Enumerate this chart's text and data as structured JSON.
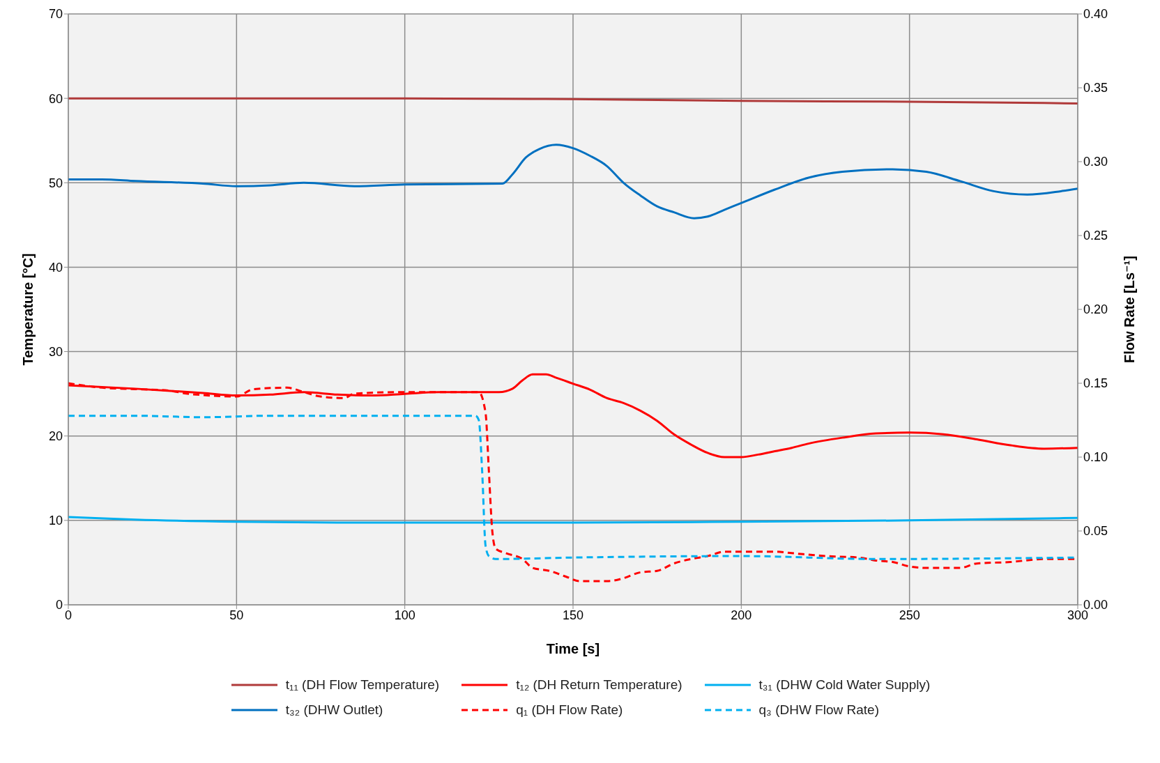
{
  "chart_data": {
    "type": "line",
    "xlabel": "Time [s]",
    "ylabel": "Temperature [°C]",
    "y2label": "Flow Rate [Ls⁻¹]",
    "xlim": [
      0,
      300
    ],
    "xticks": [
      0,
      50,
      100,
      150,
      200,
      250,
      300
    ],
    "ylim": [
      0,
      70
    ],
    "yticks": [
      0,
      10,
      20,
      30,
      40,
      50,
      60,
      70
    ],
    "y2lim": [
      0,
      0.4
    ],
    "y2ticks": [
      {
        "value": 0,
        "label": "0.00"
      },
      {
        "value": 0.05,
        "label": "0.05"
      },
      {
        "value": 0.1,
        "label": "0.10"
      },
      {
        "value": 0.15,
        "label": "0.15"
      },
      {
        "value": 0.2,
        "label": "0.20"
      },
      {
        "value": 0.25,
        "label": "0.25"
      },
      {
        "value": 0.3,
        "label": "0.30"
      },
      {
        "value": 0.35,
        "label": "0.35"
      },
      {
        "value": 0.4,
        "label": "0.40"
      }
    ],
    "grid": true,
    "legend": "bottom",
    "series": [
      {
        "name": "t₁₁ (DH Flow Temperature)",
        "color": "#b03a3a",
        "line_style": "solid",
        "x": [
          0,
          50,
          100,
          150,
          200,
          250,
          300
        ],
        "values": [
          60.0,
          60.0,
          60.0,
          59.9,
          59.7,
          59.6,
          59.4
        ]
      },
      {
        "name": "t₁₂ (DH Return Temperature)",
        "color": "#ff0000",
        "line_style": "solid",
        "x": [
          0,
          20,
          40,
          50,
          60,
          70,
          80,
          90,
          100,
          110,
          128,
          132,
          135,
          138,
          142,
          145,
          150,
          155,
          160,
          165,
          170,
          175,
          180,
          185,
          190,
          195,
          200,
          205,
          210,
          215,
          220,
          230,
          240,
          250,
          260,
          270,
          280,
          290,
          300
        ],
        "values": [
          26.0,
          25.6,
          25.1,
          24.8,
          24.9,
          25.2,
          24.9,
          24.8,
          25.0,
          25.2,
          25.2,
          25.6,
          26.6,
          27.3,
          27.3,
          26.9,
          26.2,
          25.5,
          24.5,
          23.9,
          23.0,
          21.8,
          20.2,
          19.0,
          18.0,
          17.5,
          17.5,
          17.8,
          18.2,
          18.6,
          19.1,
          19.8,
          20.3,
          20.4,
          20.2,
          19.6,
          18.9,
          18.5,
          18.6
        ]
      },
      {
        "name": "t₃₁ (DHW Cold Water Supply)",
        "color": "#00b0f0",
        "line_style": "solid",
        "x": [
          0,
          20,
          50,
          80,
          150,
          200,
          250,
          300
        ],
        "values": [
          10.4,
          10.1,
          9.85,
          9.75,
          9.75,
          9.85,
          10.0,
          10.3
        ]
      },
      {
        "name": "t₃₂ (DHW Outlet)",
        "color": "#0070c0",
        "line_style": "solid",
        "x": [
          0,
          10,
          20,
          40,
          50,
          60,
          70,
          85,
          100,
          129,
          132,
          136,
          140,
          145,
          150,
          155,
          160,
          165,
          170,
          175,
          180,
          186,
          190,
          195,
          200,
          210,
          220,
          230,
          245,
          255,
          265,
          275,
          285,
          295,
          300
        ],
        "values": [
          50.4,
          50.4,
          50.2,
          49.9,
          49.6,
          49.7,
          50.0,
          49.6,
          49.8,
          49.9,
          51.0,
          53.0,
          54.0,
          54.5,
          54.1,
          53.2,
          52.0,
          50.0,
          48.5,
          47.2,
          46.5,
          45.8,
          46.0,
          46.8,
          47.6,
          49.2,
          50.6,
          51.3,
          51.6,
          51.3,
          50.2,
          49.0,
          48.6,
          49.0,
          49.3
        ]
      },
      {
        "name": "q₁ (DH Flow Rate)",
        "color": "#ff0000",
        "line_style": "dashed",
        "axis": "y2",
        "x": [
          0,
          10,
          20,
          30,
          35,
          40,
          50,
          55,
          65,
          70,
          75,
          82,
          85,
          100,
          110,
          122,
          124,
          125,
          126,
          127,
          130,
          135,
          138,
          143,
          148,
          152,
          160,
          165,
          170,
          175,
          180,
          185,
          190,
          195,
          200,
          210,
          215,
          225,
          235,
          240,
          245,
          250,
          255,
          265,
          270,
          280,
          290,
          300
        ],
        "values": [
          0.15,
          0.147,
          0.146,
          0.145,
          0.143,
          0.142,
          0.141,
          0.146,
          0.147,
          0.144,
          0.141,
          0.14,
          0.143,
          0.144,
          0.144,
          0.144,
          0.13,
          0.09,
          0.05,
          0.038,
          0.035,
          0.031,
          0.025,
          0.023,
          0.019,
          0.016,
          0.016,
          0.018,
          0.022,
          0.023,
          0.028,
          0.031,
          0.033,
          0.036,
          0.036,
          0.036,
          0.035,
          0.033,
          0.032,
          0.03,
          0.029,
          0.026,
          0.025,
          0.025,
          0.028,
          0.029,
          0.031,
          0.031
        ]
      },
      {
        "name": "q₃ (DHW Flow Rate)",
        "color": "#00b0f0",
        "line_style": "dashed",
        "axis": "y2",
        "x": [
          0,
          20,
          40,
          60,
          80,
          100,
          121,
          122,
          123,
          124,
          125,
          127,
          150,
          200,
          240,
          300
        ],
        "values": [
          0.128,
          0.128,
          0.127,
          0.128,
          0.128,
          0.128,
          0.128,
          0.125,
          0.09,
          0.04,
          0.033,
          0.031,
          0.032,
          0.033,
          0.031,
          0.032
        ]
      }
    ]
  }
}
